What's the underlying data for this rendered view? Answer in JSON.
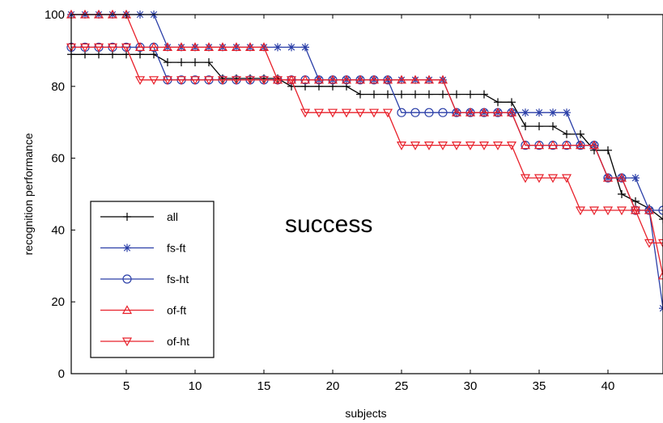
{
  "chart_data": {
    "type": "line",
    "title": "",
    "xlabel": "subjects",
    "ylabel": "recognition performance",
    "xlim": [
      1,
      44
    ],
    "ylim": [
      0,
      100
    ],
    "xticks": [
      5,
      10,
      15,
      20,
      25,
      30,
      35,
      40
    ],
    "yticks": [
      0,
      20,
      40,
      60,
      80,
      100
    ],
    "grid": false,
    "legend_position": "bottom-left",
    "annotation": "success",
    "series": [
      {
        "name": "all",
        "color": "#000000",
        "marker": "plus",
        "x": [
          1,
          2,
          3,
          4,
          5,
          6,
          7,
          8,
          9,
          10,
          11,
          12,
          13,
          14,
          15,
          16,
          17,
          18,
          19,
          20,
          21,
          22,
          23,
          24,
          25,
          26,
          27,
          28,
          29,
          30,
          31,
          32,
          33,
          34,
          35,
          36,
          37,
          38,
          39,
          40,
          41,
          42,
          43,
          44
        ],
        "y": [
          88.9,
          88.9,
          88.9,
          88.9,
          88.9,
          88.9,
          88.9,
          86.7,
          86.7,
          86.7,
          86.7,
          82.2,
          82.2,
          82.2,
          82.2,
          82.2,
          80,
          80,
          80,
          80,
          80,
          77.8,
          77.8,
          77.8,
          77.8,
          77.8,
          77.8,
          77.8,
          77.8,
          77.8,
          77.8,
          75.6,
          75.6,
          68.9,
          68.9,
          68.9,
          66.7,
          66.7,
          62.2,
          62.2,
          50,
          48,
          46,
          43
        ]
      },
      {
        "name": "fs-ft",
        "color": "#2b3fa8",
        "marker": "star",
        "x": [
          1,
          2,
          3,
          4,
          5,
          6,
          7,
          8,
          9,
          10,
          11,
          12,
          13,
          14,
          15,
          16,
          17,
          18,
          19,
          20,
          21,
          22,
          23,
          24,
          25,
          26,
          27,
          28,
          29,
          30,
          31,
          32,
          33,
          34,
          35,
          36,
          37,
          38,
          39,
          40,
          41,
          42,
          43,
          44
        ],
        "y": [
          100,
          100,
          100,
          100,
          100,
          100,
          100,
          90.9,
          90.9,
          90.9,
          90.9,
          90.9,
          90.9,
          90.9,
          90.9,
          90.9,
          90.9,
          90.9,
          81.8,
          81.8,
          81.8,
          81.8,
          81.8,
          81.8,
          81.8,
          81.8,
          81.8,
          81.8,
          72.7,
          72.7,
          72.7,
          72.7,
          72.7,
          72.7,
          72.7,
          72.7,
          72.7,
          63.6,
          63.6,
          54.5,
          54.5,
          54.5,
          45.5,
          18.2
        ]
      },
      {
        "name": "fs-ht",
        "color": "#2b3fa8",
        "marker": "circle",
        "x": [
          1,
          2,
          3,
          4,
          5,
          6,
          7,
          8,
          9,
          10,
          11,
          12,
          13,
          14,
          15,
          16,
          17,
          18,
          19,
          20,
          21,
          22,
          23,
          24,
          25,
          26,
          27,
          28,
          29,
          30,
          31,
          32,
          33,
          34,
          35,
          36,
          37,
          38,
          39,
          40,
          41,
          42,
          43,
          44
        ],
        "y": [
          90.9,
          90.9,
          90.9,
          90.9,
          90.9,
          90.9,
          90.9,
          81.8,
          81.8,
          81.8,
          81.8,
          81.8,
          81.8,
          81.8,
          81.8,
          81.8,
          81.8,
          81.8,
          81.8,
          81.8,
          81.8,
          81.8,
          81.8,
          81.8,
          72.7,
          72.7,
          72.7,
          72.7,
          72.7,
          72.7,
          72.7,
          72.7,
          72.7,
          63.6,
          63.6,
          63.6,
          63.6,
          63.6,
          63.6,
          54.5,
          54.5,
          45.5,
          45.5,
          45.5
        ]
      },
      {
        "name": "of-ft",
        "color": "#e8202a",
        "marker": "triangle-up",
        "x": [
          1,
          2,
          3,
          4,
          5,
          6,
          7,
          8,
          9,
          10,
          11,
          12,
          13,
          14,
          15,
          16,
          17,
          18,
          19,
          20,
          21,
          22,
          23,
          24,
          25,
          26,
          27,
          28,
          29,
          30,
          31,
          32,
          33,
          34,
          35,
          36,
          37,
          38,
          39,
          40,
          41,
          42,
          43,
          44
        ],
        "y": [
          100,
          100,
          100,
          100,
          100,
          90.9,
          90.9,
          90.9,
          90.9,
          90.9,
          90.9,
          90.9,
          90.9,
          90.9,
          90.9,
          81.8,
          81.8,
          81.8,
          81.8,
          81.8,
          81.8,
          81.8,
          81.8,
          81.8,
          81.8,
          81.8,
          81.8,
          81.8,
          72.7,
          72.7,
          72.7,
          72.7,
          72.7,
          63.6,
          63.6,
          63.6,
          63.6,
          63.6,
          63.6,
          54.5,
          54.5,
          45.5,
          45.5,
          27.3
        ]
      },
      {
        "name": "of-ht",
        "color": "#e8202a",
        "marker": "triangle-down",
        "x": [
          1,
          2,
          3,
          4,
          5,
          6,
          7,
          8,
          9,
          10,
          11,
          12,
          13,
          14,
          15,
          16,
          17,
          18,
          19,
          20,
          21,
          22,
          23,
          24,
          25,
          26,
          27,
          28,
          29,
          30,
          31,
          32,
          33,
          34,
          35,
          36,
          37,
          38,
          39,
          40,
          41,
          42,
          43,
          44
        ],
        "y": [
          90.9,
          90.9,
          90.9,
          90.9,
          90.9,
          81.8,
          81.8,
          81.8,
          81.8,
          81.8,
          81.8,
          81.8,
          81.8,
          81.8,
          81.8,
          81.8,
          81.8,
          72.7,
          72.7,
          72.7,
          72.7,
          72.7,
          72.7,
          72.7,
          63.6,
          63.6,
          63.6,
          63.6,
          63.6,
          63.6,
          63.6,
          63.6,
          63.6,
          54.5,
          54.5,
          54.5,
          54.5,
          45.5,
          45.5,
          45.5,
          45.5,
          45.5,
          36.4,
          36.4
        ]
      }
    ]
  }
}
